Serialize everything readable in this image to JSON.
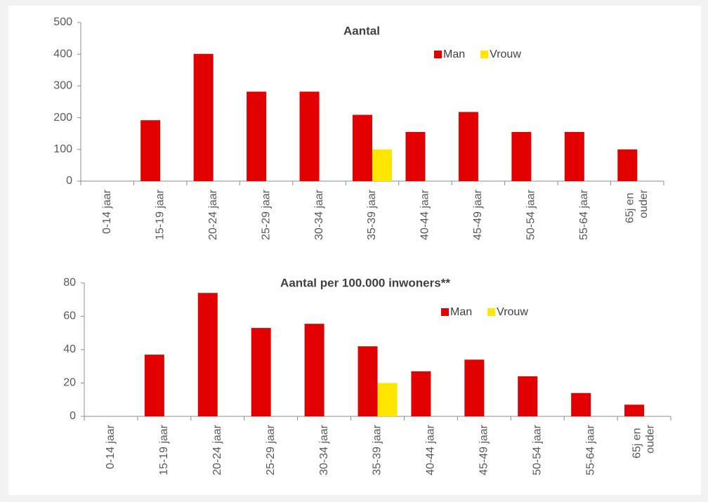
{
  "chart_data": [
    {
      "type": "bar",
      "title": "Aantal",
      "categories": [
        "0-14 jaar",
        "15-19 jaar",
        "20-24 jaar",
        "25-29 jaar",
        "30-34 jaar",
        "35-39 jaar",
        "40-44 jaar",
        "45-49 jaar",
        "50-54 jaar",
        "55-64 jaar",
        "65j en ouder"
      ],
      "series": [
        {
          "name": "Man",
          "color": "#e30000",
          "values": [
            0,
            192,
            401,
            282,
            282,
            209,
            155,
            218,
            155,
            155,
            100
          ]
        },
        {
          "name": "Vrouw",
          "color": "#ffe600",
          "values": [
            0,
            0,
            0,
            0,
            0,
            100,
            0,
            0,
            0,
            0,
            0
          ]
        }
      ],
      "ylim": [
        0,
        500
      ],
      "yticks": [
        0,
        100,
        200,
        300,
        400,
        500
      ],
      "grid": false,
      "legend": "top-right"
    },
    {
      "type": "bar",
      "title": "Aantal per 100.000 inwoners**",
      "categories": [
        "0-14 jaar",
        "15-19 jaar",
        "20-24 jaar",
        "25-29 jaar",
        "30-34 jaar",
        "35-39 jaar",
        "40-44 jaar",
        "45-49 jaar",
        "50-54 jaar",
        "55-64 jaar",
        "65j en ouder"
      ],
      "series": [
        {
          "name": "Man",
          "color": "#e30000",
          "values": [
            0,
            37,
            74,
            53,
            55.5,
            42,
            27,
            34,
            24,
            14,
            7
          ]
        },
        {
          "name": "Vrouw",
          "color": "#ffe600",
          "values": [
            0,
            0,
            0,
            0,
            0,
            20,
            0,
            0,
            0,
            0,
            0
          ]
        }
      ],
      "ylim": [
        0,
        80
      ],
      "yticks": [
        0,
        20,
        40,
        60,
        80
      ],
      "grid": false,
      "legend": "top-right"
    }
  ]
}
